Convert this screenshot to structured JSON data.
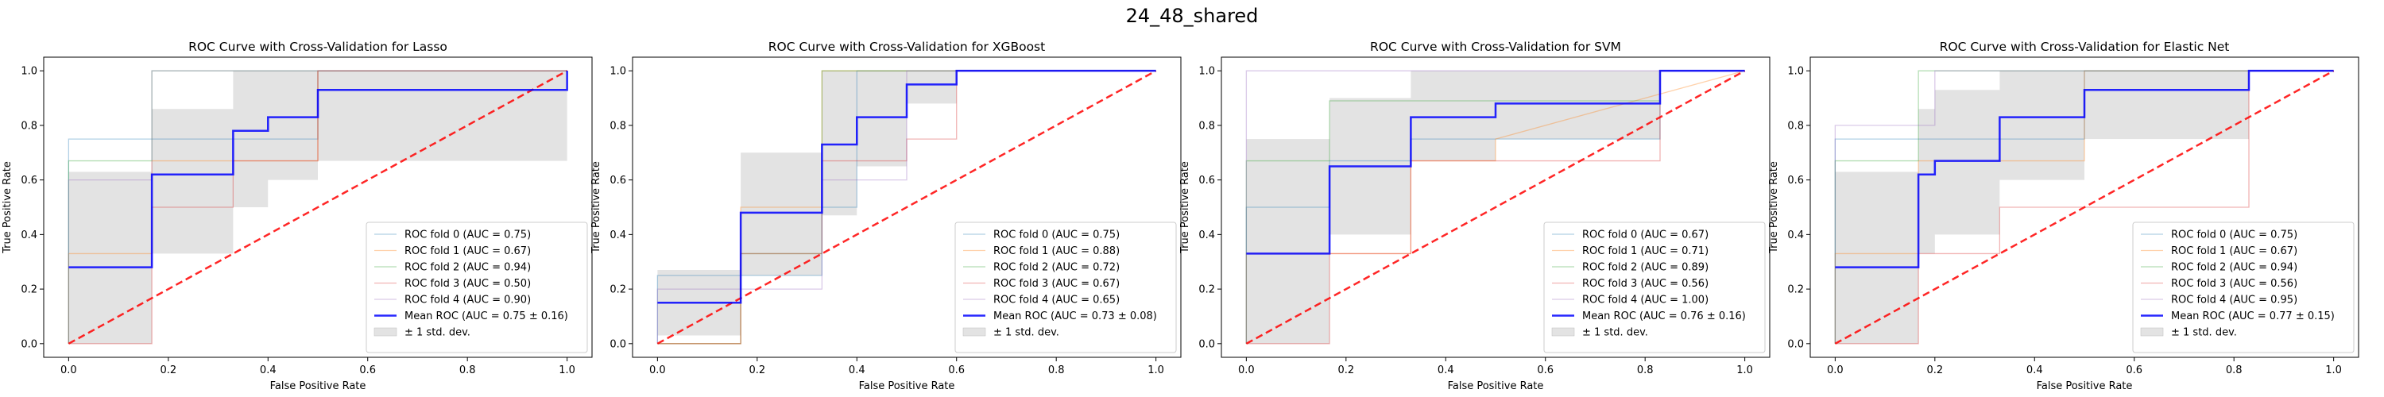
{
  "suptitle": "24_48_shared",
  "colors": {
    "folds": [
      "#1f77b4",
      "#ff7f0e",
      "#2ca02c",
      "#d62728",
      "#9467bd"
    ],
    "mean": "#0000ff",
    "chance": "#ff0000",
    "band": "#d9d9d9"
  },
  "chart_data": [
    {
      "type": "line",
      "title": "ROC Curve with Cross-Validation for Lasso",
      "xlabel": "False Positive Rate",
      "ylabel": "True Positive Rate",
      "xlim": [
        -0.05,
        1.05
      ],
      "ylim": [
        -0.05,
        1.05
      ],
      "xticks": [
        "0.0",
        "0.2",
        "0.4",
        "0.6",
        "0.8",
        "1.0"
      ],
      "yticks": [
        "0.0",
        "0.2",
        "0.4",
        "0.6",
        "0.8",
        "1.0"
      ],
      "grid": false,
      "legend_position": "lower right",
      "folds": [
        {
          "name": "ROC fold 0 (AUC = 0.75)",
          "x": [
            0,
            0,
            0.5,
            0.5,
            1
          ],
          "y": [
            0,
            0.75,
            0.75,
            1,
            1
          ]
        },
        {
          "name": "ROC fold 1 (AUC = 0.67)",
          "x": [
            0,
            0,
            0.167,
            0.167,
            0.5,
            0.5,
            1
          ],
          "y": [
            0,
            0.33,
            0.33,
            0.67,
            0.67,
            1,
            1
          ]
        },
        {
          "name": "ROC fold 2 (AUC = 0.94)",
          "x": [
            0,
            0,
            0.167,
            0.167,
            0.33,
            0.33,
            1
          ],
          "y": [
            0,
            0.67,
            0.67,
            1,
            1,
            1,
            1
          ]
        },
        {
          "name": "ROC fold 3 (AUC = 0.50)",
          "x": [
            0,
            0.167,
            0.167,
            0.33,
            0.33,
            0.5,
            0.5,
            1
          ],
          "y": [
            0,
            0,
            0.5,
            0.5,
            0.67,
            0.67,
            1,
            1
          ]
        },
        {
          "name": "ROC fold 4 (AUC = 0.90)",
          "x": [
            0,
            0,
            0.167,
            0.167,
            0.5,
            0.5,
            1
          ],
          "y": [
            0,
            0.6,
            0.6,
            1,
            1,
            1,
            1
          ]
        }
      ],
      "mean": {
        "name": "Mean ROC (AUC = 0.75 ± 0.16)",
        "x": [
          0,
          0.167,
          0.167,
          0.33,
          0.33,
          0.4,
          0.4,
          0.5,
          0.5,
          1,
          1
        ],
        "y": [
          0.28,
          0.28,
          0.62,
          0.62,
          0.78,
          0.78,
          0.83,
          0.83,
          0.93,
          0.93,
          1
        ]
      },
      "band": {
        "name": "± 1 std. dev.",
        "x": [
          0,
          0.167,
          0.167,
          0.33,
          0.33,
          0.4,
          0.4,
          0.5,
          0.5,
          1,
          1
        ],
        "upper": [
          0.63,
          0.63,
          0.86,
          0.86,
          1,
          1,
          1,
          1,
          1,
          1,
          1
        ],
        "lower": [
          0,
          0,
          0.33,
          0.33,
          0.5,
          0.5,
          0.6,
          0.6,
          0.67,
          0.67,
          1
        ]
      }
    },
    {
      "type": "line",
      "title": "ROC Curve with Cross-Validation for XGBoost",
      "xlabel": "False Positive Rate",
      "ylabel": "True Positive Rate",
      "xlim": [
        -0.05,
        1.05
      ],
      "ylim": [
        -0.05,
        1.05
      ],
      "xticks": [
        "0.0",
        "0.2",
        "0.4",
        "0.6",
        "0.8",
        "1.0"
      ],
      "yticks": [
        "0.0",
        "0.2",
        "0.4",
        "0.6",
        "0.8",
        "1.0"
      ],
      "grid": false,
      "legend_position": "lower right",
      "folds": [
        {
          "name": "ROC fold 0 (AUC = 0.75)",
          "x": [
            0,
            0,
            0.33,
            0.33,
            0.4,
            0.4,
            1
          ],
          "y": [
            0,
            0.25,
            0.25,
            0.5,
            0.5,
            1,
            1
          ]
        },
        {
          "name": "ROC fold 1 (AUC = 0.88)",
          "x": [
            0,
            0.167,
            0.167,
            0.33,
            0.33,
            1
          ],
          "y": [
            0,
            0,
            0.5,
            0.5,
            1,
            1
          ]
        },
        {
          "name": "ROC fold 2 (AUC = 0.72)",
          "x": [
            0,
            0.167,
            0.167,
            0.33,
            0.33,
            0.4,
            0.4,
            1
          ],
          "y": [
            0,
            0,
            0.33,
            0.33,
            1,
            1,
            1,
            1
          ]
        },
        {
          "name": "ROC fold 3 (AUC = 0.67)",
          "x": [
            0,
            0.167,
            0.167,
            0.33,
            0.33,
            0.5,
            0.5,
            0.6,
            0.6,
            1
          ],
          "y": [
            0,
            0,
            0.33,
            0.33,
            0.67,
            0.67,
            0.75,
            0.75,
            1,
            1
          ]
        },
        {
          "name": "ROC fold 4 (AUC = 0.65)",
          "x": [
            0,
            0,
            0.33,
            0.33,
            0.5,
            0.5,
            1
          ],
          "y": [
            0,
            0.2,
            0.2,
            0.6,
            0.6,
            1,
            1
          ]
        }
      ],
      "mean": {
        "name": "Mean ROC (AUC = 0.73 ± 0.08)",
        "x": [
          0,
          0.167,
          0.167,
          0.33,
          0.33,
          0.4,
          0.4,
          0.5,
          0.5,
          0.6,
          0.6,
          1
        ],
        "y": [
          0.15,
          0.15,
          0.48,
          0.48,
          0.73,
          0.73,
          0.83,
          0.83,
          0.95,
          0.95,
          1,
          1
        ]
      },
      "band": {
        "name": "± 1 std. dev.",
        "x": [
          0,
          0.167,
          0.167,
          0.33,
          0.33,
          0.4,
          0.4,
          0.5,
          0.5,
          0.6,
          0.6,
          1
        ],
        "upper": [
          0.27,
          0.27,
          0.7,
          0.7,
          1,
          1,
          1,
          1,
          1,
          1,
          1,
          1
        ],
        "lower": [
          0.03,
          0.03,
          0.25,
          0.25,
          0.47,
          0.47,
          0.65,
          0.65,
          0.88,
          0.88,
          1,
          1
        ]
      }
    },
    {
      "type": "line",
      "title": "ROC Curve with Cross-Validation for SVM",
      "xlabel": "False Positive Rate",
      "ylabel": "True Positive Rate",
      "xlim": [
        -0.05,
        1.05
      ],
      "ylim": [
        -0.05,
        1.05
      ],
      "xticks": [
        "0.0",
        "0.2",
        "0.4",
        "0.6",
        "0.8",
        "1.0"
      ],
      "yticks": [
        "0.0",
        "0.2",
        "0.4",
        "0.6",
        "0.8",
        "1.0"
      ],
      "grid": false,
      "legend_position": "lower right",
      "folds": [
        {
          "name": "ROC fold 0 (AUC = 0.67)",
          "x": [
            0,
            0,
            0.167,
            0.167,
            0.33,
            0.33,
            0.83,
            0.83,
            1
          ],
          "y": [
            0,
            0.5,
            0.5,
            0.67,
            0.67,
            0.75,
            0.75,
            1,
            1
          ]
        },
        {
          "name": "ROC fold 1 (AUC = 0.71)",
          "x": [
            0,
            0,
            0.33,
            0.33,
            0.5,
            0.5,
            1
          ],
          "y": [
            0,
            0.33,
            0.33,
            0.67,
            0.67,
            0.75,
            1
          ]
        },
        {
          "name": "ROC fold 2 (AUC = 0.89)",
          "x": [
            0,
            0,
            0.167,
            0.167,
            0.83,
            0.83,
            1
          ],
          "y": [
            0,
            0.67,
            0.67,
            0.89,
            0.89,
            1,
            1
          ]
        },
        {
          "name": "ROC fold 3 (AUC = 0.56)",
          "x": [
            0,
            0.167,
            0.167,
            0.33,
            0.33,
            0.83,
            0.83,
            1
          ],
          "y": [
            0,
            0,
            0.33,
            0.33,
            0.67,
            0.67,
            1,
            1
          ]
        },
        {
          "name": "ROC fold 4 (AUC = 1.00)",
          "x": [
            0,
            0,
            1
          ],
          "y": [
            0,
            1,
            1
          ]
        }
      ],
      "mean": {
        "name": "Mean ROC (AUC = 0.76 ± 0.16)",
        "x": [
          0,
          0.167,
          0.167,
          0.33,
          0.33,
          0.5,
          0.5,
          0.83,
          0.83,
          1
        ],
        "y": [
          0.33,
          0.33,
          0.65,
          0.65,
          0.83,
          0.83,
          0.88,
          0.88,
          1,
          1
        ]
      },
      "band": {
        "name": "± 1 std. dev.",
        "x": [
          0,
          0.167,
          0.167,
          0.33,
          0.33,
          0.5,
          0.5,
          0.83,
          0.83,
          1
        ],
        "upper": [
          0.75,
          0.75,
          0.9,
          0.9,
          1,
          1,
          1,
          1,
          1,
          1
        ],
        "lower": [
          0,
          0,
          0.4,
          0.4,
          0.67,
          0.67,
          0.75,
          0.75,
          1,
          1
        ]
      }
    },
    {
      "type": "line",
      "title": "ROC Curve with Cross-Validation for Elastic Net",
      "xlabel": "False Positive Rate",
      "ylabel": "True Positive Rate",
      "xlim": [
        -0.05,
        1.05
      ],
      "ylim": [
        -0.05,
        1.05
      ],
      "xticks": [
        "0.0",
        "0.2",
        "0.4",
        "0.6",
        "0.8",
        "1.0"
      ],
      "yticks": [
        "0.0",
        "0.2",
        "0.4",
        "0.6",
        "0.8",
        "1.0"
      ],
      "grid": false,
      "legend_position": "lower right",
      "folds": [
        {
          "name": "ROC fold 0 (AUC = 0.75)",
          "x": [
            0,
            0,
            0.5,
            0.5,
            1
          ],
          "y": [
            0,
            0.75,
            0.75,
            1,
            1
          ]
        },
        {
          "name": "ROC fold 1 (AUC = 0.67)",
          "x": [
            0,
            0,
            0.167,
            0.167,
            0.5,
            0.5,
            1
          ],
          "y": [
            0,
            0.33,
            0.33,
            0.67,
            0.67,
            1,
            1
          ]
        },
        {
          "name": "ROC fold 2 (AUC = 0.94)",
          "x": [
            0,
            0,
            0.167,
            0.167,
            1
          ],
          "y": [
            0,
            0.67,
            0.67,
            1,
            1
          ]
        },
        {
          "name": "ROC fold 3 (AUC = 0.56)",
          "x": [
            0,
            0.167,
            0.167,
            0.33,
            0.33,
            0.83,
            0.83,
            1
          ],
          "y": [
            0,
            0,
            0.33,
            0.33,
            0.5,
            0.5,
            1,
            1
          ]
        },
        {
          "name": "ROC fold 4 (AUC = 0.95)",
          "x": [
            0,
            0,
            0.2,
            0.2,
            1
          ],
          "y": [
            0,
            0.8,
            0.8,
            1,
            1
          ]
        }
      ],
      "mean": {
        "name": "Mean ROC (AUC = 0.77 ± 0.15)",
        "x": [
          0,
          0.167,
          0.167,
          0.2,
          0.2,
          0.33,
          0.33,
          0.5,
          0.5,
          0.83,
          0.83,
          1
        ],
        "y": [
          0.28,
          0.28,
          0.62,
          0.62,
          0.67,
          0.67,
          0.83,
          0.83,
          0.93,
          0.93,
          1,
          1
        ]
      },
      "band": {
        "name": "± 1 std. dev.",
        "x": [
          0,
          0.167,
          0.167,
          0.2,
          0.2,
          0.33,
          0.33,
          0.5,
          0.5,
          0.83,
          0.83,
          1
        ],
        "upper": [
          0.63,
          0.63,
          0.86,
          0.86,
          0.93,
          0.93,
          1,
          1,
          1,
          1,
          1,
          1
        ],
        "lower": [
          0,
          0,
          0.33,
          0.33,
          0.4,
          0.4,
          0.6,
          0.6,
          0.75,
          0.75,
          1,
          1
        ]
      }
    }
  ]
}
